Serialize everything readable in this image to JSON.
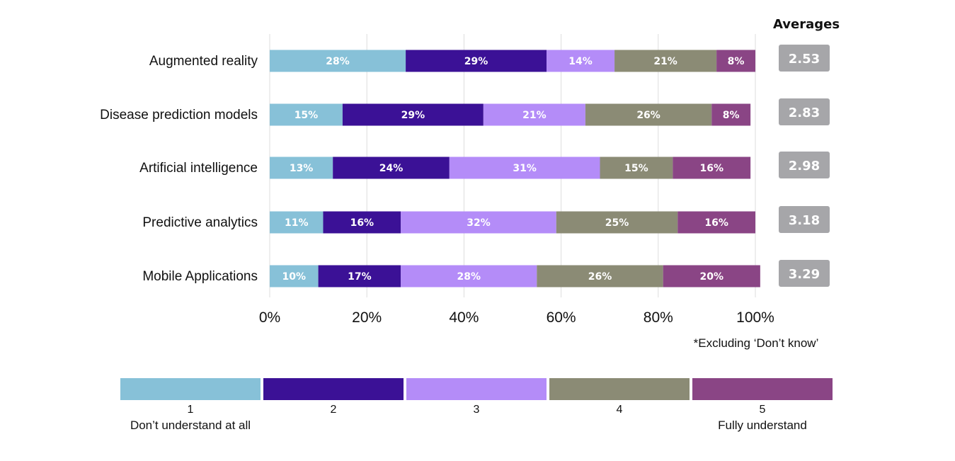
{
  "chart_data": {
    "type": "bar",
    "orientation": "horizontal",
    "stacked": true,
    "categories": [
      "Augmented reality",
      "Disease prediction models",
      "Artificial intelligence",
      "Predictive analytics",
      "Mobile Applications"
    ],
    "series": [
      {
        "name": "1",
        "color": "#87c1d8",
        "values": [
          28,
          15,
          13,
          11,
          10
        ]
      },
      {
        "name": "2",
        "color": "#3b1196",
        "values": [
          29,
          29,
          24,
          16,
          17
        ]
      },
      {
        "name": "3",
        "color": "#b48cf8",
        "values": [
          14,
          21,
          31,
          32,
          28
        ]
      },
      {
        "name": "4",
        "color": "#8b8b75",
        "values": [
          21,
          26,
          15,
          25,
          26
        ]
      },
      {
        "name": "5",
        "color": "#8a4585",
        "values": [
          8,
          8,
          16,
          16,
          20
        ]
      }
    ],
    "xlim": [
      0,
      100
    ],
    "xticks": [
      "0%",
      "20%",
      "40%",
      "60%",
      "80%",
      "100%"
    ],
    "grid": true,
    "averages_title": "Averages",
    "averages": [
      "2.53",
      "2.83",
      "2.98",
      "3.18",
      "3.29"
    ],
    "averages_color": "#a6a6a9",
    "footnote": "*Excluding ‘Don’t know’",
    "legend": {
      "position": "bottom",
      "items": [
        "1",
        "2",
        "3",
        "4",
        "5"
      ],
      "low_label": "Don’t understand at all",
      "high_label": "Fully understand"
    }
  }
}
